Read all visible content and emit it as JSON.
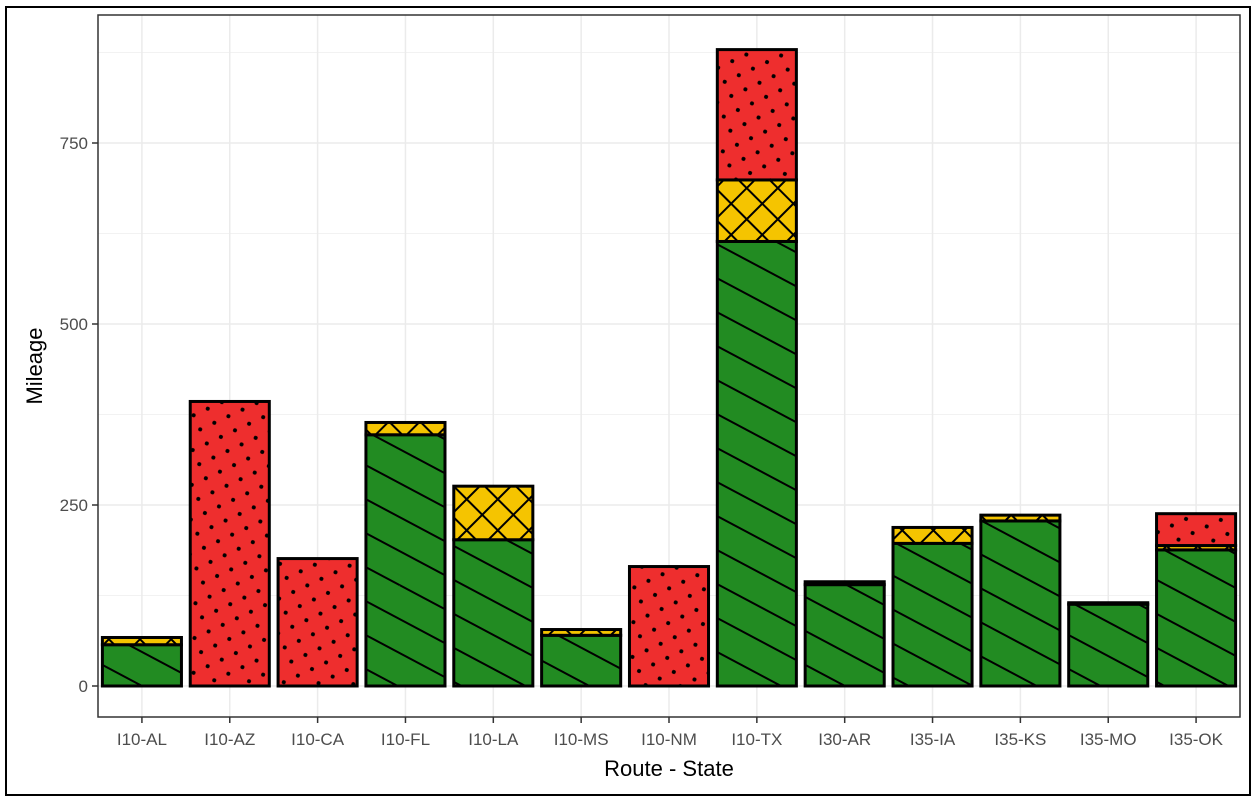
{
  "chart_data": {
    "type": "bar",
    "stacked": true,
    "xlabel": "Route - State",
    "ylabel": "Mileage",
    "ylim": [
      0,
      880
    ],
    "y_ticks": [
      0,
      250,
      500,
      750
    ],
    "grid": true,
    "legend": "none",
    "categories": [
      "I10-AL",
      "I10-AZ",
      "I10-CA",
      "I10-FL",
      "I10-LA",
      "I10-MS",
      "I10-NM",
      "I10-TX",
      "I30-AR",
      "I35-IA",
      "I35-KS",
      "I35-MO",
      "I35-OK"
    ],
    "series": [
      {
        "color": "#228b22",
        "pattern": "stripe",
        "values": [
          57,
          0,
          0,
          347,
          202,
          70,
          0,
          614,
          140,
          197,
          228,
          113,
          188
        ]
      },
      {
        "color": "#f5c400",
        "pattern": "crosshatch",
        "values": [
          10,
          0,
          0,
          17,
          74,
          8,
          0,
          85,
          4,
          22,
          8,
          2,
          6
        ]
      },
      {
        "color": "#ee2e2e",
        "pattern": "dots",
        "values": [
          0,
          393,
          176,
          0,
          0,
          0,
          165,
          180,
          0,
          0,
          0,
          0,
          44
        ]
      }
    ]
  }
}
